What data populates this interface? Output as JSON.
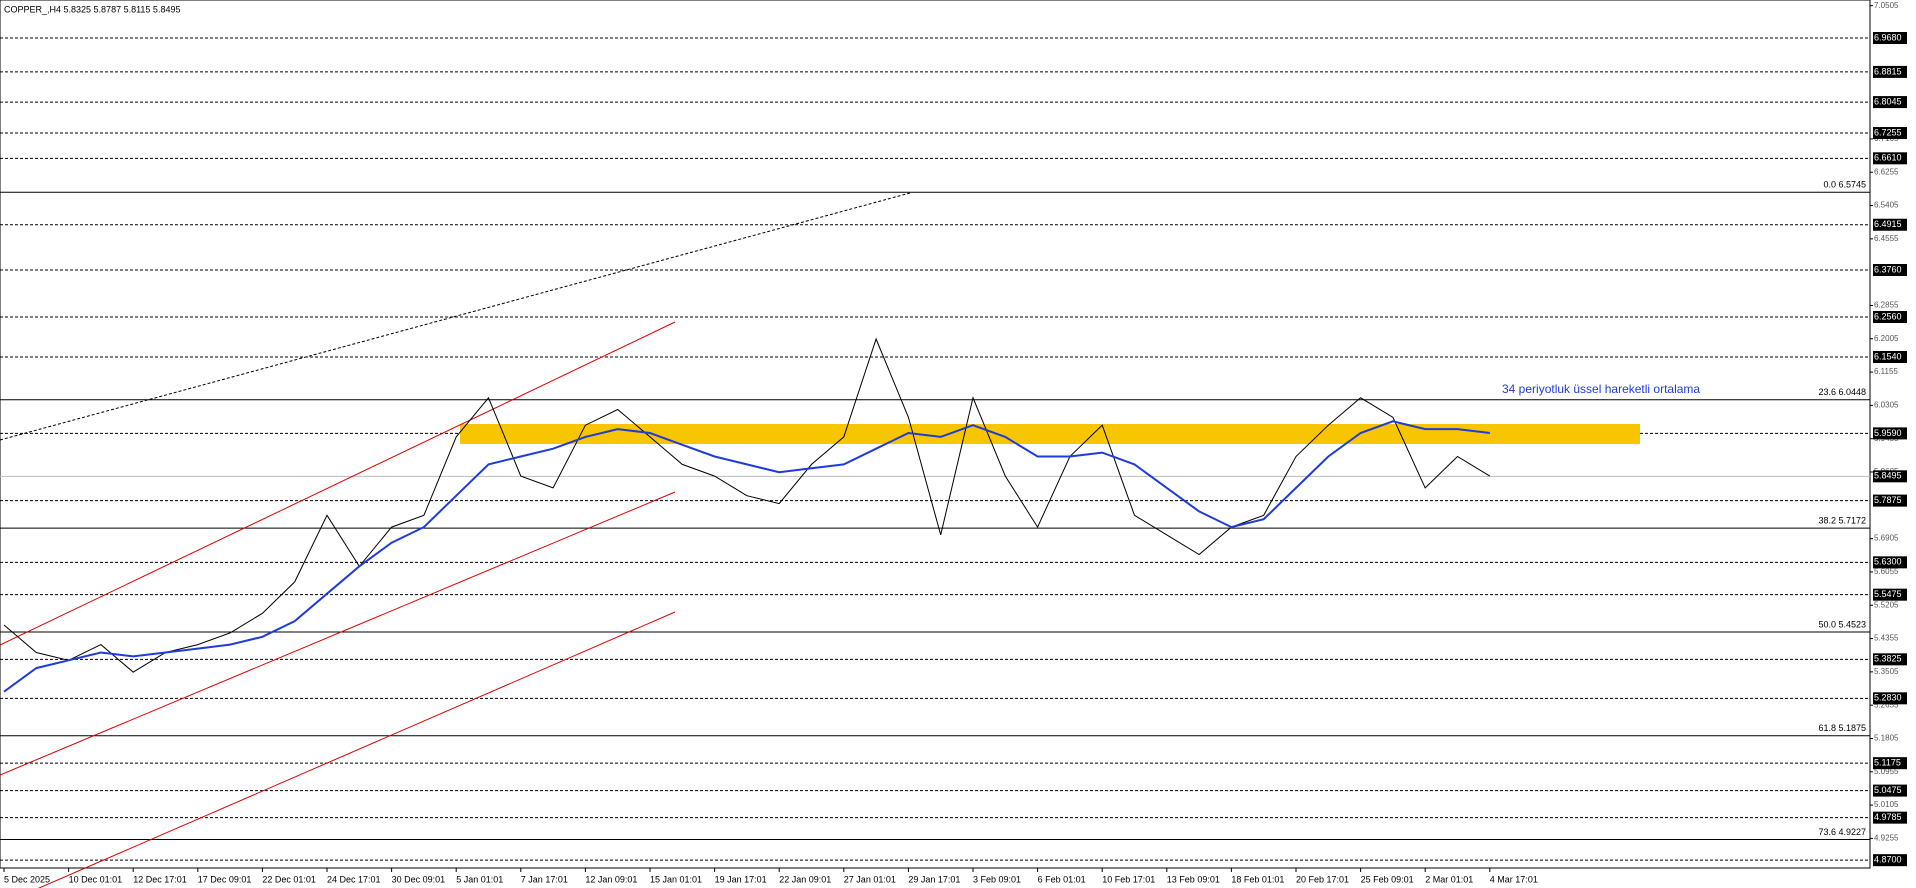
{
  "chart_data": {
    "type": "line",
    "title": "COPPER_,H4 5.8325 5.8787 5.8115 5.8495",
    "annotation": "34 periyotluk üssel hareketli ortalama",
    "categories": [
      "5 Dec 2025",
      null,
      "10 Dec 01:01",
      null,
      "12 Dec 17:01",
      null,
      "17 Dec 09:01",
      null,
      "22 Dec 01:01",
      null,
      "24 Dec 17:01",
      null,
      "30 Dec 09:01",
      null,
      "5 Jan 01:01",
      null,
      "7 Jan 17:01",
      null,
      "12 Jan 09:01",
      null,
      "15 Jan 01:01",
      null,
      "19 Jan 17:01",
      null,
      "22 Jan 09:01",
      null,
      "27 Jan 01:01",
      null,
      "29 Jan 17:01",
      null,
      "3 Feb 09:01",
      null,
      "6 Feb 01:01",
      null,
      "10 Feb 17:01",
      null,
      "13 Feb 09:01",
      null,
      "18 Feb 01:01",
      null,
      "20 Feb 17:01",
      null,
      "25 Feb 09:01",
      null,
      "2 Mar 01:01",
      null,
      "4 Mar 17:01"
    ],
    "series": [
      {
        "name": "COPPER_",
        "color": "#000000",
        "values": [
          5.47,
          5.4,
          5.38,
          5.42,
          5.35,
          5.4,
          5.42,
          5.45,
          5.5,
          5.58,
          5.75,
          5.62,
          5.72,
          5.75,
          5.95,
          6.05,
          5.85,
          5.82,
          5.98,
          6.02,
          5.95,
          5.88,
          5.85,
          5.8,
          5.78,
          5.88,
          5.95,
          6.2,
          6.0,
          5.7,
          6.05,
          5.85,
          5.72,
          5.9,
          5.98,
          5.75,
          5.7,
          5.65,
          5.72,
          5.75,
          5.9,
          5.98,
          6.05,
          6.0,
          5.82,
          5.9,
          5.85
        ]
      },
      {
        "name": "EMA 34",
        "color": "#1f3bdb",
        "values": [
          5.3,
          5.36,
          5.38,
          5.4,
          5.39,
          5.4,
          5.41,
          5.42,
          5.44,
          5.48,
          5.55,
          5.62,
          5.68,
          5.72,
          5.8,
          5.88,
          5.9,
          5.92,
          5.95,
          5.97,
          5.96,
          5.93,
          5.9,
          5.88,
          5.86,
          5.87,
          5.88,
          5.92,
          5.96,
          5.95,
          5.98,
          5.95,
          5.9,
          5.9,
          5.91,
          5.88,
          5.82,
          5.76,
          5.72,
          5.74,
          5.82,
          5.9,
          5.96,
          5.99,
          5.97,
          5.97,
          5.96
        ]
      }
    ],
    "levels": [
      {
        "value": 6.968,
        "label": "6.9680"
      },
      {
        "value": 6.8815,
        "label": "6.8815"
      },
      {
        "value": 6.8045,
        "label": "6.8045"
      },
      {
        "value": 6.7255,
        "label": "6.7255"
      },
      {
        "value": 6.661,
        "label": "6.6610"
      },
      {
        "value": 6.4915,
        "label": "6.4915"
      },
      {
        "value": 6.376,
        "label": "6.3760"
      },
      {
        "value": 6.256,
        "label": "6.2560"
      },
      {
        "value": 6.154,
        "label": "6.1540"
      },
      {
        "value": 5.959,
        "label": "5.9590"
      },
      {
        "value": 5.7875,
        "label": "5.7875"
      },
      {
        "value": 5.63,
        "label": "5.6300"
      },
      {
        "value": 5.5475,
        "label": "5.5475"
      },
      {
        "value": 5.3825,
        "label": "5.3825"
      },
      {
        "value": 5.283,
        "label": "5.2830"
      },
      {
        "value": 5.1175,
        "label": "5.1175"
      },
      {
        "value": 5.0475,
        "label": "5.0475"
      },
      {
        "value": 4.9785,
        "label": "4.9785"
      },
      {
        "value": 4.87,
        "label": "4.8700"
      }
    ],
    "current_price": 5.8495,
    "fib_levels": [
      {
        "value": 6.5745,
        "label": "0.0 6.5745"
      },
      {
        "value": 6.0448,
        "label": "23.6 6.0448"
      },
      {
        "value": 5.7172,
        "label": "38.2 5.7172"
      },
      {
        "value": 5.4523,
        "label": "50.0 5.4523"
      },
      {
        "value": 5.1875,
        "label": "61.8 5.1875"
      },
      {
        "value": 4.9227,
        "label": "73.6 4.9227"
      }
    ],
    "ylim": [
      4.85,
      7.065
    ],
    "yticks": [
      7.0505,
      6.7105,
      6.6255,
      6.5405,
      6.4555,
      6.2855,
      6.2005,
      6.1155,
      6.0305,
      5.9455,
      5.8605,
      5.6905,
      5.6055,
      5.5205,
      5.4355,
      5.3505,
      5.2655,
      5.1805,
      5.0955,
      5.0105,
      4.9255
    ]
  }
}
